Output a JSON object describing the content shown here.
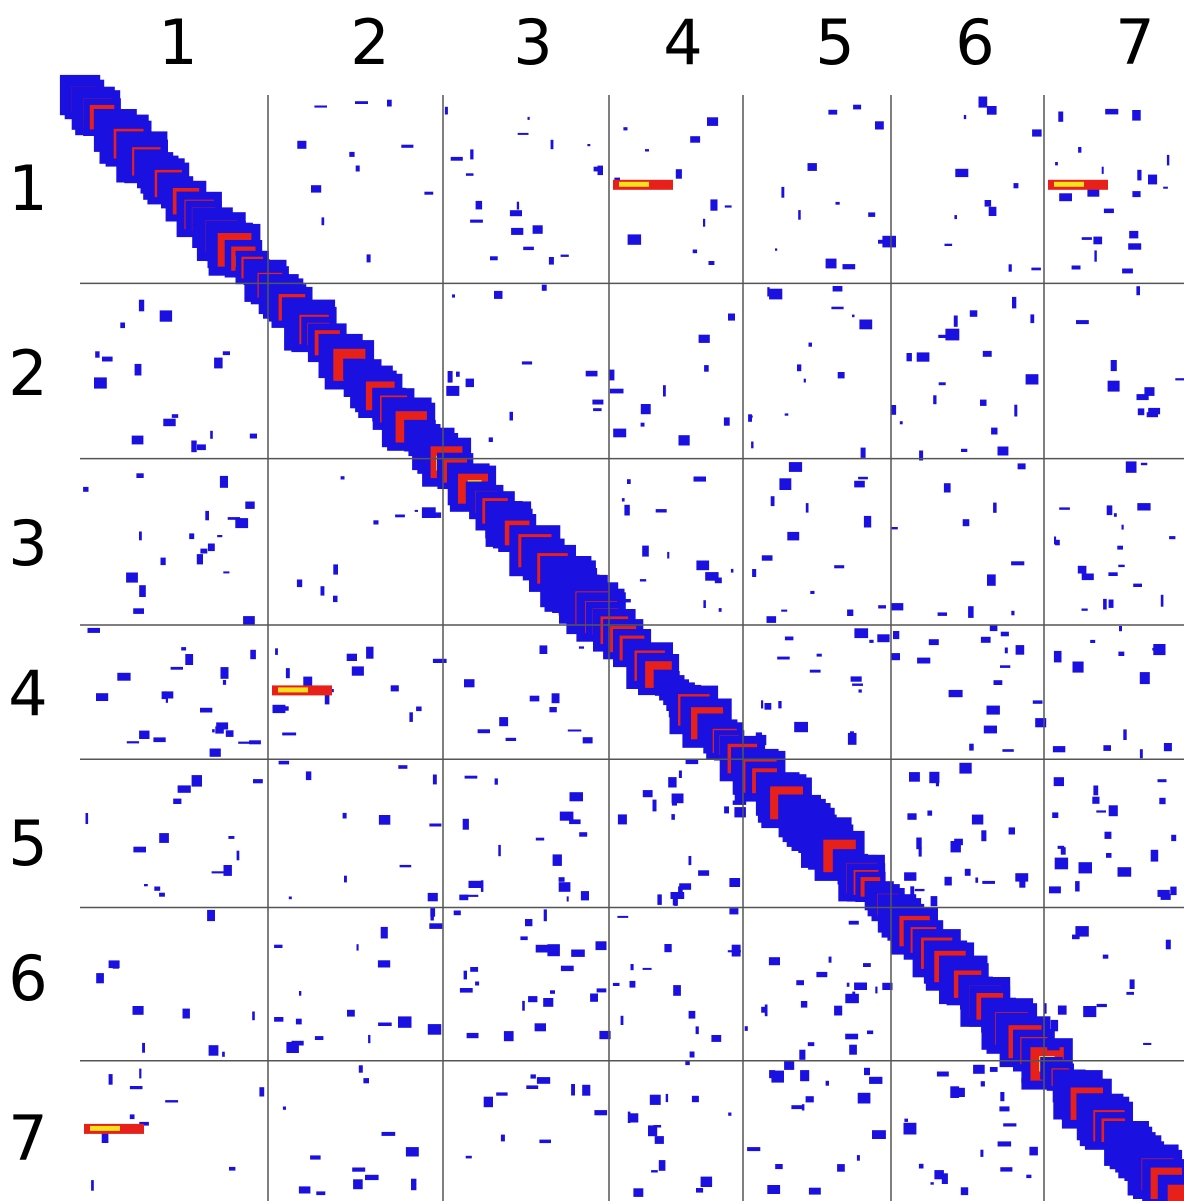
{
  "chart_data": {
    "type": "heatmap",
    "title": "",
    "xlabel": "",
    "ylabel": "",
    "legend": "none",
    "grid": true,
    "colors": {
      "low": "#1a10e0",
      "mid": "#e8201a",
      "high": "#f4e21a",
      "grid": "#555555",
      "background": "#ffffff"
    },
    "tick_labels_x": [
      "1",
      "2",
      "3",
      "4",
      "5",
      "6",
      "7"
    ],
    "tick_labels_y": [
      "1",
      "2",
      "3",
      "4",
      "5",
      "6",
      "7"
    ],
    "block_sizes": [
      188,
      175,
      166,
      134,
      148,
      153,
      140
    ],
    "description": "Contact map split into 7x7 blocks; dense contacts along the diagonal, sparse off-diagonal contacts.",
    "off_diagonal_hotspots": [
      {
        "row": 1,
        "col": 7,
        "level": "high"
      },
      {
        "row": 7,
        "col": 1,
        "level": "high"
      },
      {
        "row": 1,
        "col": 4,
        "level": "high"
      },
      {
        "row": 4,
        "col": 2,
        "level": "high"
      }
    ]
  }
}
